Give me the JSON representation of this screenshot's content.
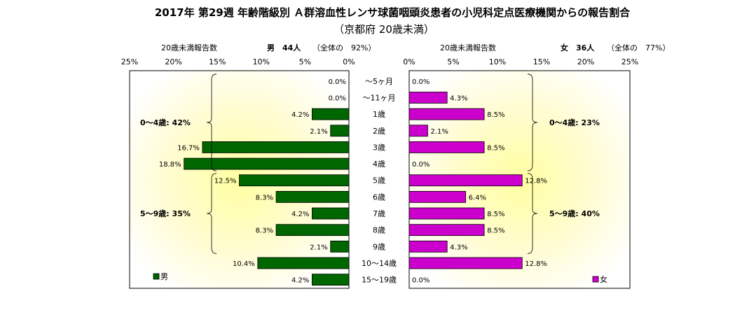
{
  "chart_data": {
    "type": "bar",
    "orientation": "horizontal",
    "layout": "population-pyramid",
    "title": "2017年 第29週 年齢階級別 Ａ群溶血性レンサ球菌咽頭炎患者の小児科定点医療機関からの報告割合",
    "subtitle": "（京都府 20歳未満）",
    "categories": [
      "～5ヶ月",
      "～11ヶ月",
      "1歳",
      "2歳",
      "3歳",
      "4歳",
      "5歳",
      "6歳",
      "7歳",
      "8歳",
      "9歳",
      "10～14歳",
      "15～19歳"
    ],
    "xlim": [
      0,
      25
    ],
    "ticks": [
      "0%",
      "5%",
      "10%",
      "15%",
      "20%",
      "25%"
    ],
    "grid": false,
    "series": [
      {
        "name": "男",
        "side": "left",
        "color": "#006600",
        "header_label": "20歳未満報告数",
        "header_count": "男　44人",
        "header_ratio": "（全体の　92%）",
        "values": [
          0.0,
          0.0,
          4.2,
          2.1,
          16.7,
          18.8,
          12.5,
          8.3,
          4.2,
          8.3,
          2.1,
          10.4,
          4.2
        ],
        "labels": [
          "0.0%",
          "0.0%",
          "4.2%",
          "2.1%",
          "16.7%",
          "18.8%",
          "12.5%",
          "8.3%",
          "4.2%",
          "8.3%",
          "2.1%",
          "10.4%",
          "4.2%"
        ],
        "groups": [
          {
            "label": "0～4歳: 42%",
            "from": 0,
            "to": 5
          },
          {
            "label": "5～9歳: 35%",
            "from": 6,
            "to": 10
          }
        ]
      },
      {
        "name": "女",
        "side": "right",
        "color": "#cc00cc",
        "header_label": "20歳未満報告数",
        "header_count": "女　36人",
        "header_ratio": "（全体の　77%）",
        "values": [
          0.0,
          4.3,
          8.5,
          2.1,
          8.5,
          0.0,
          12.8,
          6.4,
          8.5,
          8.5,
          4.3,
          12.8,
          0.0
        ],
        "labels": [
          "0.0%",
          "4.3%",
          "8.5%",
          "2.1%",
          "8.5%",
          "0.0%",
          "12.8%",
          "6.4%",
          "8.5%",
          "8.5%",
          "4.3%",
          "12.8%",
          "0.0%"
        ],
        "groups": [
          {
            "label": "0～4歳: 23%",
            "from": 0,
            "to": 5
          },
          {
            "label": "5～9歳: 40%",
            "from": 6,
            "to": 10
          }
        ]
      }
    ],
    "legend": "bottom-left / bottom-right"
  }
}
